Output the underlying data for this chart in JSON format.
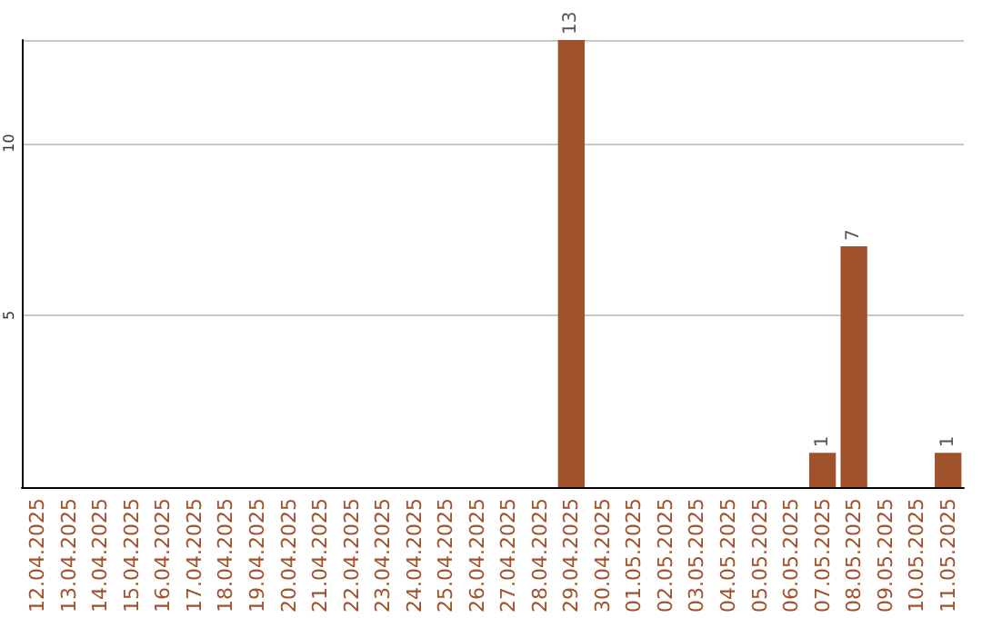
{
  "chart_data": {
    "type": "bar",
    "categories": [
      "12.04.2025",
      "13.04.2025",
      "14.04.2025",
      "15.04.2025",
      "16.04.2025",
      "17.04.2025",
      "18.04.2025",
      "19.04.2025",
      "20.04.2025",
      "21.04.2025",
      "22.04.2025",
      "23.04.2025",
      "24.04.2025",
      "25.04.2025",
      "26.04.2025",
      "27.04.2025",
      "28.04.2025",
      "29.04.2025",
      "30.04.2025",
      "01.05.2025",
      "02.05.2025",
      "03.05.2025",
      "04.05.2025",
      "05.05.2025",
      "06.05.2025",
      "07.05.2025",
      "08.05.2025",
      "09.05.2025",
      "10.05.2025",
      "11.05.2025"
    ],
    "values": [
      0,
      0,
      0,
      0,
      0,
      0,
      0,
      0,
      0,
      0,
      0,
      0,
      0,
      0,
      0,
      0,
      0,
      13,
      0,
      0,
      0,
      0,
      0,
      0,
      0,
      1,
      7,
      0,
      0,
      1
    ],
    "value_labels": [
      null,
      null,
      null,
      null,
      null,
      null,
      null,
      null,
      null,
      null,
      null,
      null,
      null,
      null,
      null,
      null,
      null,
      "13",
      null,
      null,
      null,
      null,
      null,
      null,
      null,
      "1",
      "7",
      null,
      null,
      "1"
    ],
    "color": "#a0522d",
    "ylim": [
      0,
      13
    ],
    "yticks": [
      5,
      10
    ],
    "grid": "y"
  }
}
